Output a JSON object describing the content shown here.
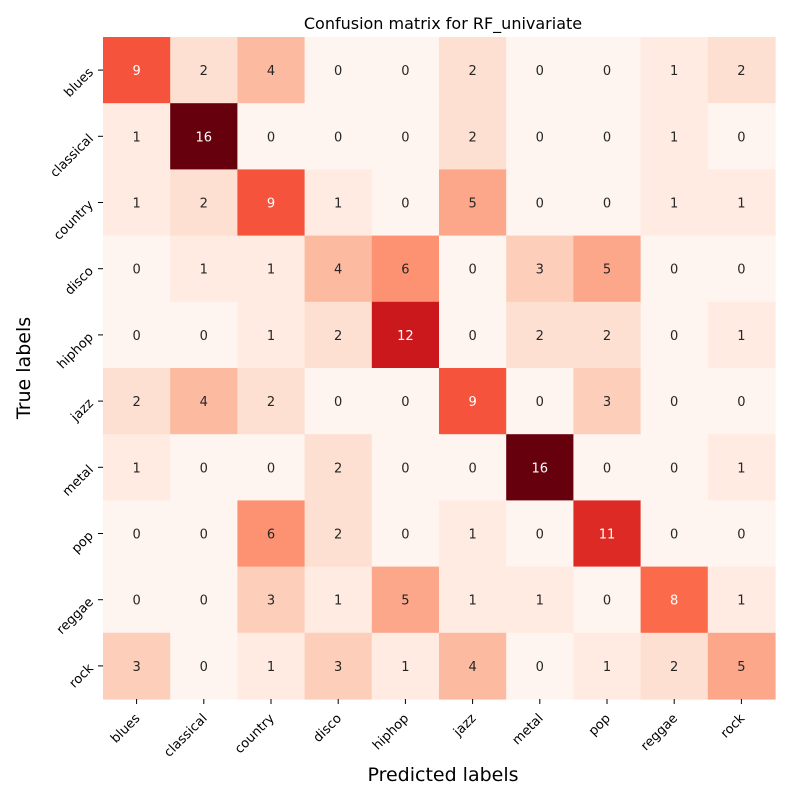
{
  "chart_data": {
    "type": "heatmap",
    "title": "Confusion matrix for RF_univariate",
    "xlabel": "Predicted labels",
    "ylabel": "True labels",
    "x_categories": [
      "blues",
      "classical",
      "country",
      "disco",
      "hiphop",
      "jazz",
      "metal",
      "pop",
      "reggae",
      "rock"
    ],
    "y_categories": [
      "blues",
      "classical",
      "country",
      "disco",
      "hiphop",
      "jazz",
      "metal",
      "pop",
      "reggae",
      "rock"
    ],
    "values": [
      [
        9,
        2,
        4,
        0,
        0,
        2,
        0,
        0,
        1,
        2
      ],
      [
        1,
        16,
        0,
        0,
        0,
        2,
        0,
        0,
        1,
        0
      ],
      [
        1,
        2,
        9,
        1,
        0,
        5,
        0,
        0,
        1,
        1
      ],
      [
        0,
        1,
        1,
        4,
        6,
        0,
        3,
        5,
        0,
        0
      ],
      [
        0,
        0,
        1,
        2,
        12,
        0,
        2,
        2,
        0,
        1
      ],
      [
        2,
        4,
        2,
        0,
        0,
        9,
        0,
        3,
        0,
        0
      ],
      [
        1,
        0,
        0,
        2,
        0,
        0,
        16,
        0,
        0,
        1
      ],
      [
        0,
        0,
        6,
        2,
        0,
        1,
        0,
        11,
        0,
        0
      ],
      [
        0,
        0,
        3,
        1,
        5,
        1,
        1,
        0,
        8,
        1
      ],
      [
        3,
        0,
        1,
        3,
        1,
        4,
        0,
        1,
        2,
        5
      ]
    ],
    "colormap": "Reds",
    "vmin": 0,
    "vmax": 16,
    "colorbar": false,
    "grid": false
  }
}
